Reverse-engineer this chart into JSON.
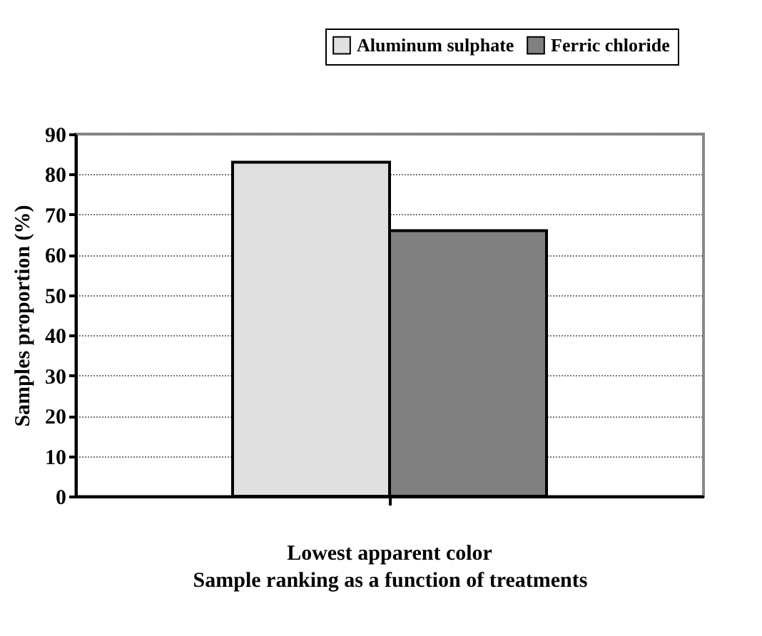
{
  "chart_data": {
    "type": "bar",
    "categories": [
      "Lowest apparent color"
    ],
    "xlabel": "Sample ranking as a function of treatments",
    "ylabel": "Samples proportion (%)",
    "series": [
      {
        "name": "Aluminum sulphate",
        "color": "#e0e0e0",
        "values": [
          83
        ]
      },
      {
        "name": "Ferric chloride",
        "color": "#808080",
        "values": [
          66
        ]
      }
    ],
    "ylim": [
      0,
      90
    ],
    "yticks": [
      0,
      10,
      20,
      30,
      40,
      50,
      60,
      70,
      80,
      90
    ],
    "grid": "y",
    "legend": "top right"
  }
}
